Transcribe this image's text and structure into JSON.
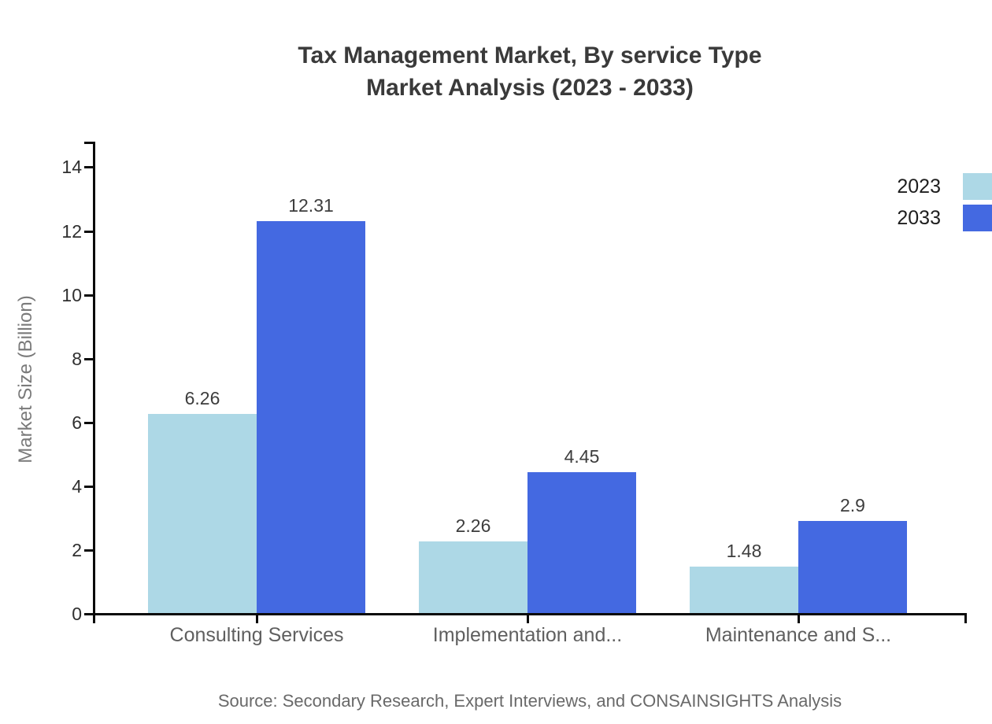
{
  "chart_data": {
    "type": "bar",
    "title_line1": "Tax Management Market, By service Type",
    "title_line2": "Market Analysis (2023 - 2033)",
    "ylabel": "Market Size (Billion)",
    "xlabel": "",
    "categories": [
      "Consulting Services",
      "Implementation and...",
      "Maintenance and S..."
    ],
    "series": [
      {
        "name": "2023",
        "color": "#ADD8E6",
        "values": [
          6.26,
          2.26,
          1.48
        ]
      },
      {
        "name": "2033",
        "color": "#4469E1",
        "values": [
          12.31,
          4.45,
          2.9
        ]
      }
    ],
    "value_labels": [
      [
        "6.26",
        "2.26",
        "1.48"
      ],
      [
        "12.31",
        "4.45",
        "2.9"
      ]
    ],
    "ylim": [
      0,
      14.8
    ],
    "yticks": [
      0,
      2,
      4,
      6,
      8,
      10,
      12,
      14
    ],
    "grid": false,
    "legend_position": "top-right"
  },
  "source_text": "Source: Secondary Research, Expert Interviews, and CONSAINSIGHTS Analysis",
  "colors": {
    "series_2023": "#ADD8E6",
    "series_2033": "#4469E1",
    "axis": "#0a0a0a",
    "title_text": "#3a3a3a",
    "tick_text": "#2f2f2f",
    "category_text": "#5f5f5f",
    "value_text": "#3d3d3d",
    "ylabel_text": "#7a7a7a",
    "source_text_color": "#696969",
    "legend_text": "#1e1e1e",
    "background": "#ffffff"
  }
}
